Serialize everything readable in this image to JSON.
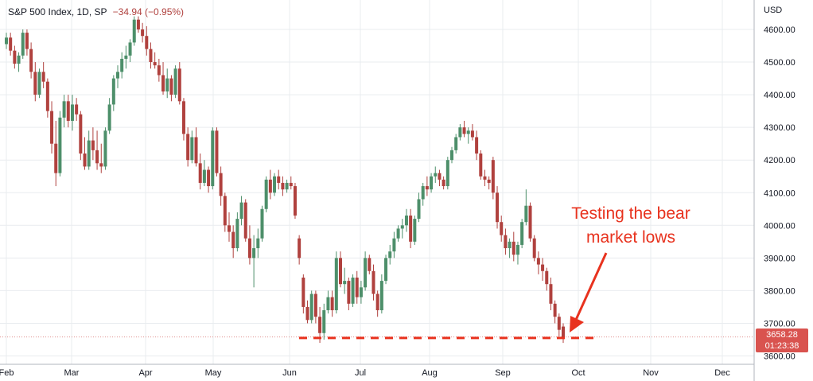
{
  "header": {
    "symbol": "S&P 500 Index, 1D, SP",
    "change": "−34.94 (−0.95%)"
  },
  "annotation": {
    "line1": "Testing the bear",
    "line2": "market lows"
  },
  "price_tag": {
    "price": "3658.28",
    "countdown": "01:23:38"
  },
  "colors": {
    "up": "#4d8f6a",
    "down": "#b0413e",
    "annotation": "#e8321e",
    "grid": "#e9ecef"
  },
  "chart_data": {
    "type": "candlestick",
    "title": "S&P 500 Index, 1D, SP",
    "y_axis_unit": "USD",
    "ylim": [
      3580,
      4660
    ],
    "y_ticks": [
      "4600.00",
      "4500.00",
      "4400.00",
      "4300.00",
      "4200.00",
      "4100.00",
      "4000.00",
      "3900.00",
      "3800.00",
      "3700.00",
      "3600.00"
    ],
    "x_ticks": [
      "Feb",
      "Mar",
      "Apr",
      "May",
      "Jun",
      "Jul",
      "Aug",
      "Sep",
      "Oct",
      "Nov",
      "Dec"
    ],
    "last_price": 3658.28,
    "support_level": 3660,
    "candles": [
      [
        4555,
        4590,
        4540,
        4575
      ],
      [
        4575,
        4590,
        4520,
        4535
      ],
      [
        4535,
        4550,
        4480,
        4495
      ],
      [
        4495,
        4530,
        4470,
        4520
      ],
      [
        4520,
        4600,
        4510,
        4590
      ],
      [
        4590,
        4600,
        4520,
        4540
      ],
      [
        4540,
        4560,
        4450,
        4470
      ],
      [
        4470,
        4500,
        4380,
        4400
      ],
      [
        4400,
        4480,
        4390,
        4470
      ],
      [
        4470,
        4500,
        4420,
        4440
      ],
      [
        4440,
        4450,
        4330,
        4350
      ],
      [
        4350,
        4380,
        4220,
        4250
      ],
      [
        4250,
        4320,
        4120,
        4160
      ],
      [
        4160,
        4350,
        4150,
        4330
      ],
      [
        4330,
        4400,
        4300,
        4380
      ],
      [
        4380,
        4400,
        4300,
        4320
      ],
      [
        4320,
        4400,
        4290,
        4370
      ],
      [
        4370,
        4390,
        4320,
        4340
      ],
      [
        4340,
        4350,
        4200,
        4220
      ],
      [
        4220,
        4270,
        4170,
        4180
      ],
      [
        4180,
        4290,
        4170,
        4260
      ],
      [
        4260,
        4300,
        4200,
        4230
      ],
      [
        4230,
        4290,
        4170,
        4190
      ],
      [
        4190,
        4250,
        4160,
        4180
      ],
      [
        4180,
        4300,
        4170,
        4290
      ],
      [
        4290,
        4390,
        4280,
        4370
      ],
      [
        4370,
        4460,
        4350,
        4450
      ],
      [
        4450,
        4490,
        4420,
        4470
      ],
      [
        4470,
        4530,
        4450,
        4510
      ],
      [
        4510,
        4550,
        4480,
        4520
      ],
      [
        4520,
        4570,
        4500,
        4560
      ],
      [
        4560,
        4640,
        4550,
        4630
      ],
      [
        4630,
        4640,
        4590,
        4600
      ],
      [
        4600,
        4620,
        4560,
        4580
      ],
      [
        4580,
        4610,
        4520,
        4540
      ],
      [
        4540,
        4560,
        4480,
        4500
      ],
      [
        4500,
        4530,
        4480,
        4490
      ],
      [
        4490,
        4510,
        4440,
        4460
      ],
      [
        4460,
        4500,
        4400,
        4410
      ],
      [
        4410,
        4480,
        4390,
        4450
      ],
      [
        4450,
        4460,
        4380,
        4400
      ],
      [
        4400,
        4490,
        4390,
        4480
      ],
      [
        4480,
        4500,
        4370,
        4380
      ],
      [
        4380,
        4390,
        4260,
        4280
      ],
      [
        4280,
        4300,
        4180,
        4200
      ],
      [
        4200,
        4290,
        4190,
        4270
      ],
      [
        4270,
        4300,
        4180,
        4190
      ],
      [
        4190,
        4220,
        4110,
        4130
      ],
      [
        4130,
        4200,
        4120,
        4170
      ],
      [
        4170,
        4180,
        4100,
        4120
      ],
      [
        4120,
        4300,
        4110,
        4290
      ],
      [
        4290,
        4300,
        4150,
        4160
      ],
      [
        4160,
        4180,
        4060,
        4090
      ],
      [
        4090,
        4100,
        3980,
        4000
      ],
      [
        4000,
        4040,
        3950,
        3980
      ],
      [
        3980,
        4000,
        3900,
        3930
      ],
      [
        3930,
        4040,
        3920,
        4020
      ],
      [
        4020,
        4090,
        4000,
        4070
      ],
      [
        4070,
        4080,
        3950,
        3960
      ],
      [
        3960,
        4000,
        3880,
        3900
      ],
      [
        3900,
        3970,
        3810,
        3930
      ],
      [
        3930,
        3990,
        3900,
        3960
      ],
      [
        3960,
        4060,
        3950,
        4050
      ],
      [
        4050,
        4150,
        4040,
        4140
      ],
      [
        4140,
        4170,
        4080,
        4100
      ],
      [
        4100,
        4160,
        4090,
        4150
      ],
      [
        4150,
        4170,
        4110,
        4130
      ],
      [
        4130,
        4150,
        4090,
        4110
      ],
      [
        4110,
        4140,
        4100,
        4130
      ],
      [
        4130,
        4150,
        4110,
        4120
      ],
      [
        4120,
        4130,
        4020,
        4030
      ],
      [
        3960,
        3970,
        3880,
        3900
      ],
      [
        3840,
        3850,
        3730,
        3750
      ],
      [
        3750,
        3770,
        3700,
        3710
      ],
      [
        3710,
        3800,
        3700,
        3790
      ],
      [
        3790,
        3800,
        3700,
        3720
      ],
      [
        3720,
        3750,
        3640,
        3670
      ],
      [
        3670,
        3760,
        3650,
        3740
      ],
      [
        3740,
        3800,
        3730,
        3780
      ],
      [
        3780,
        3800,
        3720,
        3740
      ],
      [
        3740,
        3920,
        3730,
        3900
      ],
      [
        3900,
        3920,
        3810,
        3820
      ],
      [
        3820,
        3870,
        3790,
        3830
      ],
      [
        3830,
        3840,
        3740,
        3760
      ],
      [
        3760,
        3850,
        3750,
        3840
      ],
      [
        3840,
        3860,
        3760,
        3780
      ],
      [
        3780,
        3830,
        3760,
        3810
      ],
      [
        3810,
        3920,
        3800,
        3900
      ],
      [
        3900,
        3910,
        3850,
        3860
      ],
      [
        3860,
        3880,
        3770,
        3790
      ],
      [
        3790,
        3800,
        3720,
        3740
      ],
      [
        3740,
        3850,
        3730,
        3830
      ],
      [
        3830,
        3910,
        3820,
        3900
      ],
      [
        3900,
        3940,
        3880,
        3920
      ],
      [
        3920,
        3980,
        3900,
        3960
      ],
      [
        3960,
        4000,
        3950,
        3990
      ],
      [
        3990,
        4020,
        3960,
        4000
      ],
      [
        4000,
        4050,
        3980,
        4030
      ],
      [
        4030,
        4050,
        3930,
        3950
      ],
      [
        3950,
        4030,
        3940,
        4020
      ],
      [
        4020,
        4100,
        4010,
        4080
      ],
      [
        4080,
        4130,
        4060,
        4120
      ],
      [
        4120,
        4150,
        4090,
        4110
      ],
      [
        4110,
        4160,
        4100,
        4150
      ],
      [
        4150,
        4180,
        4130,
        4160
      ],
      [
        4160,
        4170,
        4120,
        4140
      ],
      [
        4140,
        4150,
        4110,
        4120
      ],
      [
        4120,
        4210,
        4110,
        4200
      ],
      [
        4200,
        4240,
        4190,
        4230
      ],
      [
        4230,
        4280,
        4220,
        4270
      ],
      [
        4270,
        4310,
        4260,
        4300
      ],
      [
        4300,
        4320,
        4270,
        4280
      ],
      [
        4280,
        4300,
        4250,
        4290
      ],
      [
        4290,
        4310,
        4260,
        4270
      ],
      [
        4270,
        4290,
        4200,
        4220
      ],
      [
        4220,
        4230,
        4140,
        4150
      ],
      [
        4150,
        4170,
        4120,
        4140
      ],
      [
        4140,
        4150,
        4110,
        4130
      ],
      [
        4200,
        4210,
        4080,
        4100
      ],
      [
        4100,
        4120,
        3990,
        4010
      ],
      [
        4010,
        4030,
        3950,
        3970
      ],
      [
        3970,
        3990,
        3910,
        3930
      ],
      [
        3930,
        3960,
        3900,
        3950
      ],
      [
        3950,
        3980,
        3890,
        3910
      ],
      [
        3910,
        3950,
        3880,
        3940
      ],
      [
        3940,
        4020,
        3930,
        4010
      ],
      [
        4010,
        4110,
        4000,
        4060
      ],
      [
        4060,
        4070,
        3950,
        3960
      ],
      [
        3960,
        3970,
        3890,
        3900
      ],
      [
        3900,
        3920,
        3850,
        3880
      ],
      [
        3880,
        3900,
        3830,
        3860
      ],
      [
        3860,
        3870,
        3800,
        3820
      ],
      [
        3820,
        3840,
        3740,
        3760
      ],
      [
        3760,
        3770,
        3700,
        3720
      ],
      [
        3720,
        3730,
        3660,
        3680
      ],
      [
        3690,
        3700,
        3640,
        3658
      ]
    ]
  }
}
